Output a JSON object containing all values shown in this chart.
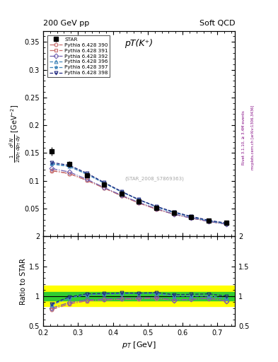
{
  "title_top_left": "200 GeV pp",
  "title_top_right": "Soft QCD",
  "plot_title": "pT(K⁺)",
  "xlabel": "p_T [GeV]",
  "ylabel_ratio": "Ratio to STAR",
  "watermark": "(STAR_2008_S7869363)",
  "right_label": "mcplots.cern.ch [arXiv:1306.3436]",
  "right_label2": "Rivet 3.1.10, ≥ 3.4M events",
  "xlim": [
    0.2,
    0.75
  ],
  "ylim_main": [
    0.0,
    0.37
  ],
  "ylim_ratio": [
    0.5,
    2.0
  ],
  "star_x": [
    0.225,
    0.275,
    0.325,
    0.375,
    0.425,
    0.475,
    0.525,
    0.575,
    0.625,
    0.675,
    0.725
  ],
  "star_y": [
    0.153,
    0.13,
    0.11,
    0.093,
    0.077,
    0.063,
    0.051,
    0.043,
    0.035,
    0.028,
    0.024
  ],
  "star_yerr": [
    0.008,
    0.005,
    0.004,
    0.003,
    0.003,
    0.002,
    0.002,
    0.002,
    0.001,
    0.001,
    0.001
  ],
  "pythia_x": [
    0.225,
    0.275,
    0.325,
    0.375,
    0.425,
    0.475,
    0.525,
    0.575,
    0.625,
    0.675,
    0.725
  ],
  "pythia390_y": [
    0.118,
    0.113,
    0.101,
    0.087,
    0.073,
    0.06,
    0.049,
    0.04,
    0.033,
    0.027,
    0.022
  ],
  "pythia391_y": [
    0.119,
    0.113,
    0.101,
    0.087,
    0.073,
    0.06,
    0.049,
    0.04,
    0.033,
    0.027,
    0.022
  ],
  "pythia392_y": [
    0.122,
    0.116,
    0.103,
    0.088,
    0.074,
    0.061,
    0.05,
    0.04,
    0.033,
    0.027,
    0.022
  ],
  "pythia396_y": [
    0.131,
    0.126,
    0.112,
    0.096,
    0.08,
    0.066,
    0.053,
    0.043,
    0.035,
    0.028,
    0.023
  ],
  "pythia397_y": [
    0.13,
    0.126,
    0.112,
    0.096,
    0.08,
    0.066,
    0.053,
    0.043,
    0.035,
    0.028,
    0.023
  ],
  "pythia398_y": [
    0.133,
    0.128,
    0.114,
    0.097,
    0.081,
    0.066,
    0.054,
    0.044,
    0.036,
    0.029,
    0.024
  ],
  "color390": "#c87070",
  "color391": "#c87070",
  "color392": "#7060b0",
  "color396": "#4488bb",
  "color397": "#4488bb",
  "color398": "#202880",
  "ls390": "-.",
  "ls391": "-.",
  "ls392": "-.",
  "ls396": "--",
  "ls397": "--",
  "ls398": "--",
  "ratio_yellow_lo": [
    0.83,
    0.83,
    0.83,
    0.83,
    0.83,
    0.83,
    0.83,
    0.83,
    0.83,
    0.83,
    0.83
  ],
  "ratio_yellow_hi": [
    1.17,
    1.17,
    1.17,
    1.17,
    1.17,
    1.17,
    1.17,
    1.17,
    1.17,
    1.17,
    1.17
  ],
  "ratio_green_lo": [
    0.93,
    0.93,
    0.93,
    0.93,
    0.93,
    0.93,
    0.93,
    0.93,
    0.93,
    0.93,
    0.93
  ],
  "ratio_green_hi": [
    1.07,
    1.07,
    1.07,
    1.07,
    1.07,
    1.07,
    1.07,
    1.07,
    1.07,
    1.07,
    1.07
  ]
}
